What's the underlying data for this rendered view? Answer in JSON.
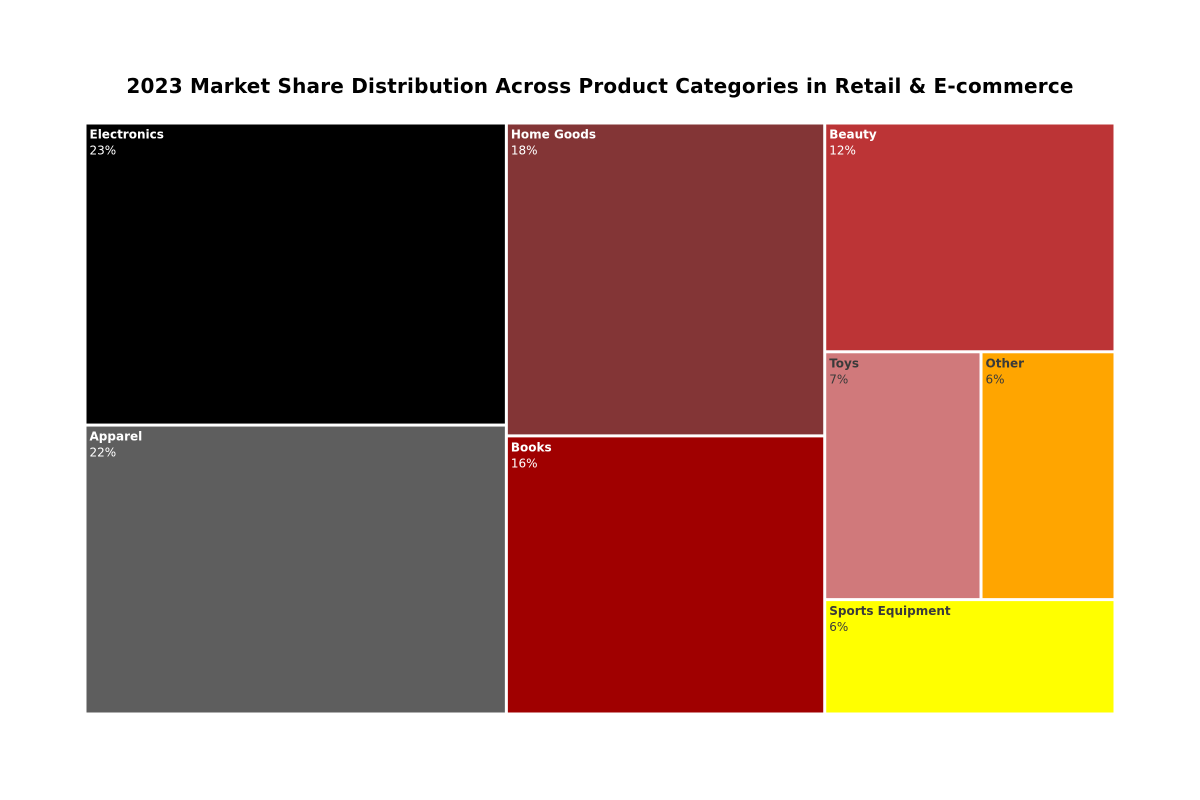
{
  "chart_data": {
    "type": "treemap",
    "title": "2023 Market Share Distribution Across Product Categories in Retail & E-commerce",
    "unit": "%",
    "items": [
      {
        "label": "Electronics",
        "value": 23,
        "value_label": "23%",
        "color": "#000000",
        "text_color": "#ffffff"
      },
      {
        "label": "Apparel",
        "value": 22,
        "value_label": "22%",
        "color": "#5e5e5e",
        "text_color": "#ffffff"
      },
      {
        "label": "Home Goods",
        "value": 18,
        "value_label": "18%",
        "color": "#833536",
        "text_color": "#ffffff"
      },
      {
        "label": "Books",
        "value": 16,
        "value_label": "16%",
        "color": "#a00000",
        "text_color": "#ffffff"
      },
      {
        "label": "Beauty",
        "value": 12,
        "value_label": "12%",
        "color": "#bc3436",
        "text_color": "#ffffff"
      },
      {
        "label": "Toys",
        "value": 7,
        "value_label": "7%",
        "color": "#d0797b",
        "text_color": "#3a3a3a"
      },
      {
        "label": "Other",
        "value": 6,
        "value_label": "6%",
        "color": "#ffa500",
        "text_color": "#3a3a3a"
      },
      {
        "label": "Sports Equipment",
        "value": 6,
        "value_label": "6%",
        "color": "#ffff00",
        "text_color": "#3a3a3a"
      }
    ]
  }
}
